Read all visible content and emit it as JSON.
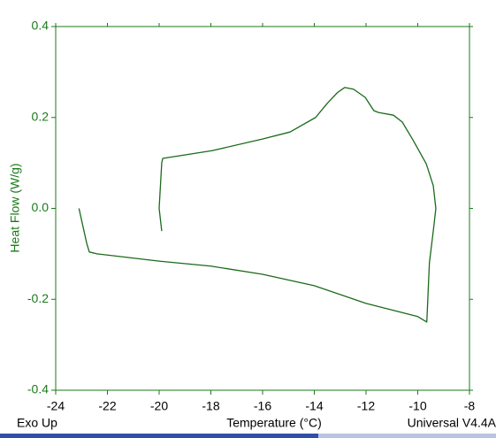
{
  "chart_data": {
    "type": "line",
    "x_label": "Temperature (°C)",
    "y_label": "Heat Flow (W/g)",
    "corner_left": "Exo Up",
    "corner_right": "Universal V4.4A",
    "xlim": [
      -24,
      -8
    ],
    "xticks": [
      -24,
      -22,
      -20,
      -18,
      -16,
      -14,
      -12,
      -10,
      -8
    ],
    "ylim": [
      -0.4,
      0.4
    ],
    "yticks": [
      -0.4,
      -0.2,
      {
        "value": 0,
        "label": "0.0"
      },
      0.2,
      0.4
    ],
    "axis_color": "#1a7a1a",
    "series": [
      {
        "color": "#1a6a1a",
        "x": [
          -23.1,
          -22.8,
          -22.7,
          -22.4,
          -20.0,
          -18.0,
          -16.0,
          -14.0,
          -12.0,
          -10.0,
          -9.65,
          -9.55,
          -9.4,
          -9.3,
          -9.4,
          -9.67,
          -10.19,
          -10.6,
          -10.94,
          -11.52,
          -11.7,
          -12.03,
          -12.48,
          -12.82,
          -13.1,
          -13.5,
          -13.95,
          -14.94,
          -15.97,
          -17.95,
          -19.86,
          -19.9,
          -20.0,
          -19.9
        ],
        "values": [
          0.0,
          -0.077,
          -0.096,
          -0.1,
          -0.116,
          -0.127,
          -0.145,
          -0.17,
          -0.209,
          -0.238,
          -0.25,
          -0.12,
          -0.05,
          0.0,
          0.05,
          0.098,
          0.151,
          0.19,
          0.205,
          0.211,
          0.215,
          0.244,
          0.262,
          0.266,
          0.255,
          0.231,
          0.2,
          0.168,
          0.153,
          0.127,
          0.11,
          0.1,
          0.0,
          -0.05
        ]
      }
    ]
  }
}
